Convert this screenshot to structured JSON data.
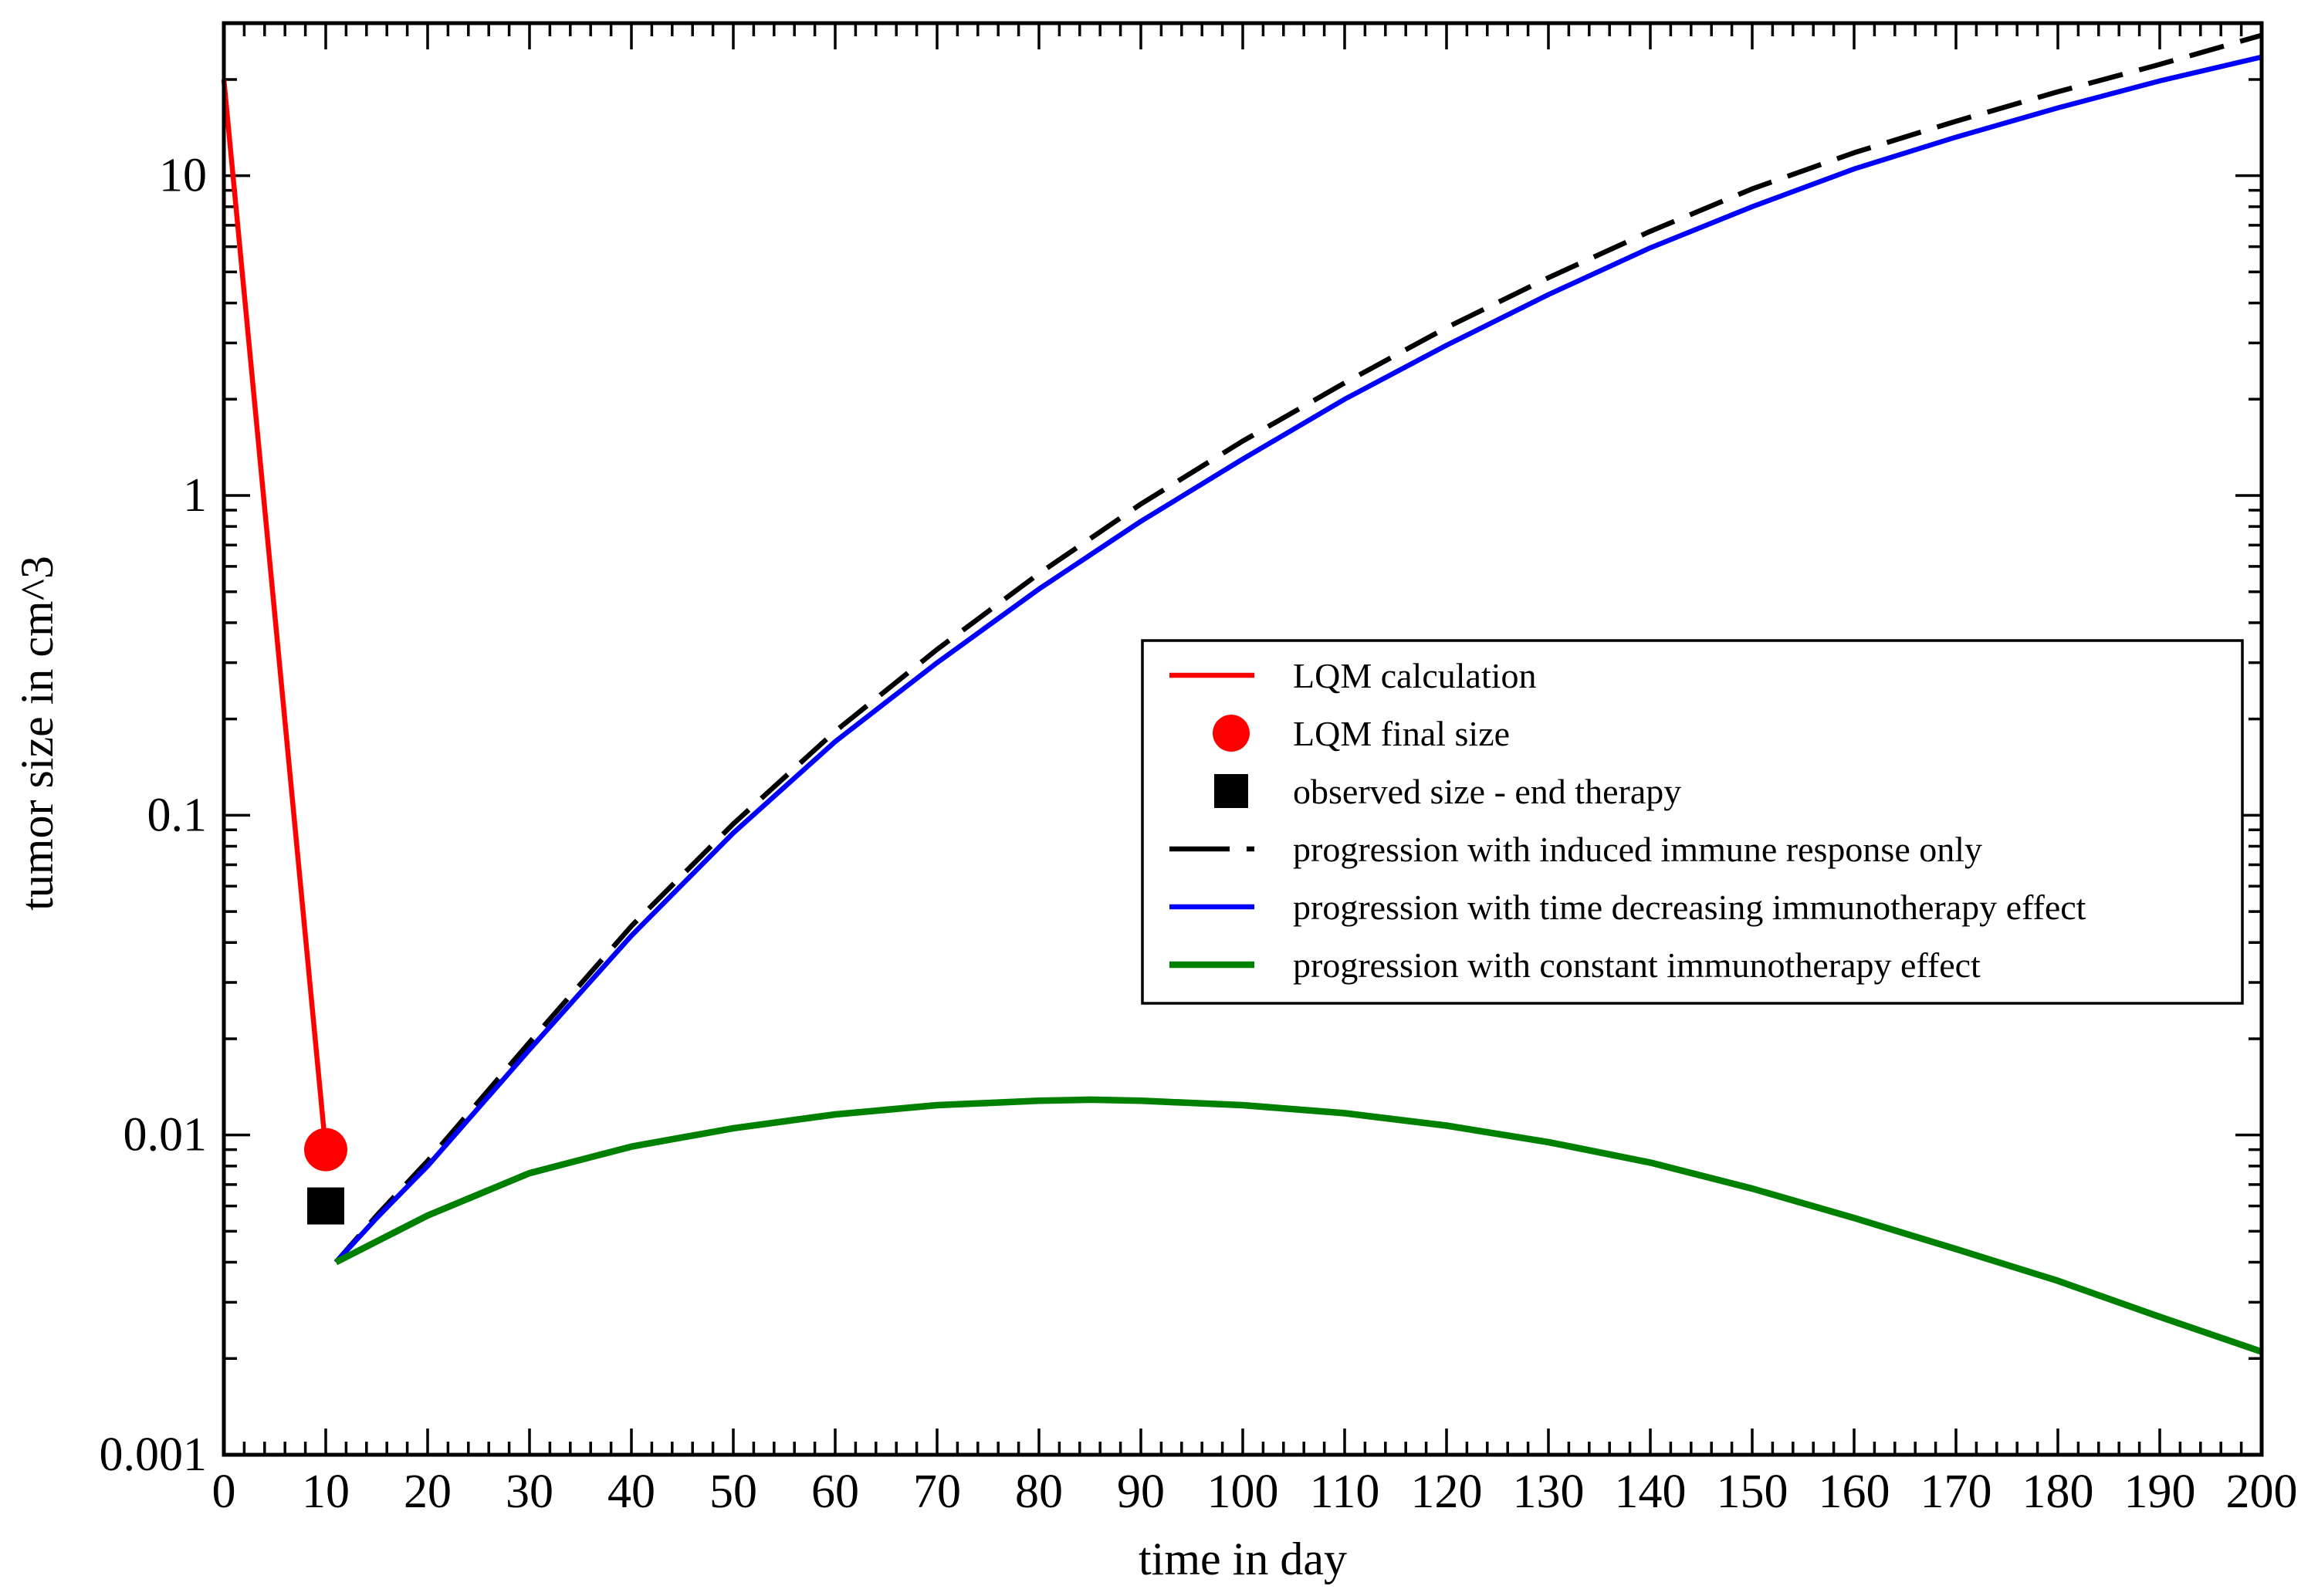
{
  "chart_data": {
    "type": "line",
    "title": "",
    "xlabel": "time in day",
    "ylabel": "tumor size in cm^3",
    "xlim": [
      0,
      200
    ],
    "ylim": [
      0.001,
      30
    ],
    "yscale": "log",
    "grid": false,
    "legend_position": "center-right",
    "x_ticks": [
      "0",
      "10",
      "20",
      "30",
      "40",
      "50",
      "60",
      "70",
      "80",
      "90",
      "100",
      "110",
      "120",
      "130",
      "140",
      "150",
      "160",
      "170",
      "180",
      "190",
      "200"
    ],
    "y_ticks": [
      {
        "value": 0.001,
        "label": "0.001"
      },
      {
        "value": 0.01,
        "label": "0.01"
      },
      {
        "value": 0.1,
        "label": "0.1"
      },
      {
        "value": 1,
        "label": "1"
      },
      {
        "value": 10,
        "label": "10"
      }
    ],
    "series": [
      {
        "name": "LQM calculation",
        "kind": "line",
        "color": "#ff0000",
        "dash": "solid",
        "points": [
          [
            0,
            20
          ],
          [
            10,
            0.009
          ]
        ]
      },
      {
        "name": "LQM final size",
        "kind": "marker-circle",
        "color": "#ff0000",
        "points": [
          [
            10,
            0.009
          ]
        ]
      },
      {
        "name": "observed size - end therapy",
        "kind": "marker-square",
        "color": "#000000",
        "points": [
          [
            10,
            0.006
          ]
        ]
      },
      {
        "name": "progression with induced immune response only",
        "kind": "line",
        "color": "#000000",
        "dash": "dashed",
        "points": [
          [
            11,
            0.004
          ],
          [
            15,
            0.0056
          ],
          [
            20,
            0.0083
          ],
          [
            30,
            0.0195
          ],
          [
            40,
            0.045
          ],
          [
            50,
            0.094
          ],
          [
            60,
            0.183
          ],
          [
            70,
            0.33
          ],
          [
            80,
            0.57
          ],
          [
            90,
            0.94
          ],
          [
            100,
            1.48
          ],
          [
            110,
            2.25
          ],
          [
            120,
            3.35
          ],
          [
            130,
            4.8
          ],
          [
            140,
            6.7
          ],
          [
            150,
            9.1
          ],
          [
            160,
            11.8
          ],
          [
            170,
            14.8
          ],
          [
            180,
            18.3
          ],
          [
            190,
            22.3
          ],
          [
            200,
            27.5
          ]
        ]
      },
      {
        "name": "progression with time decreasing immunotherapy effect",
        "kind": "line",
        "color": "#0000ff",
        "dash": "solid",
        "points": [
          [
            11,
            0.004
          ],
          [
            15,
            0.0055
          ],
          [
            20,
            0.008
          ],
          [
            30,
            0.0185
          ],
          [
            40,
            0.042
          ],
          [
            50,
            0.088
          ],
          [
            60,
            0.17
          ],
          [
            70,
            0.3
          ],
          [
            80,
            0.51
          ],
          [
            90,
            0.83
          ],
          [
            100,
            1.3
          ],
          [
            110,
            2.0
          ],
          [
            120,
            2.95
          ],
          [
            130,
            4.25
          ],
          [
            140,
            5.95
          ],
          [
            150,
            8.0
          ],
          [
            160,
            10.5
          ],
          [
            170,
            13.2
          ],
          [
            180,
            16.3
          ],
          [
            190,
            19.8
          ],
          [
            200,
            23.5
          ]
        ]
      },
      {
        "name": "progression with constant immunotherapy effect",
        "kind": "line",
        "color": "#008000",
        "dash": "solid",
        "points": [
          [
            11,
            0.004
          ],
          [
            20,
            0.0056
          ],
          [
            30,
            0.0076
          ],
          [
            40,
            0.0092
          ],
          [
            50,
            0.0105
          ],
          [
            60,
            0.0116
          ],
          [
            70,
            0.0124
          ],
          [
            80,
            0.0128
          ],
          [
            85,
            0.0129
          ],
          [
            90,
            0.0128
          ],
          [
            100,
            0.0124
          ],
          [
            110,
            0.0117
          ],
          [
            120,
            0.0107
          ],
          [
            130,
            0.0095
          ],
          [
            140,
            0.0082
          ],
          [
            150,
            0.0068
          ],
          [
            160,
            0.0055
          ],
          [
            170,
            0.0044
          ],
          [
            180,
            0.0035
          ],
          [
            190,
            0.0027
          ],
          [
            200,
            0.0021
          ]
        ]
      }
    ]
  }
}
